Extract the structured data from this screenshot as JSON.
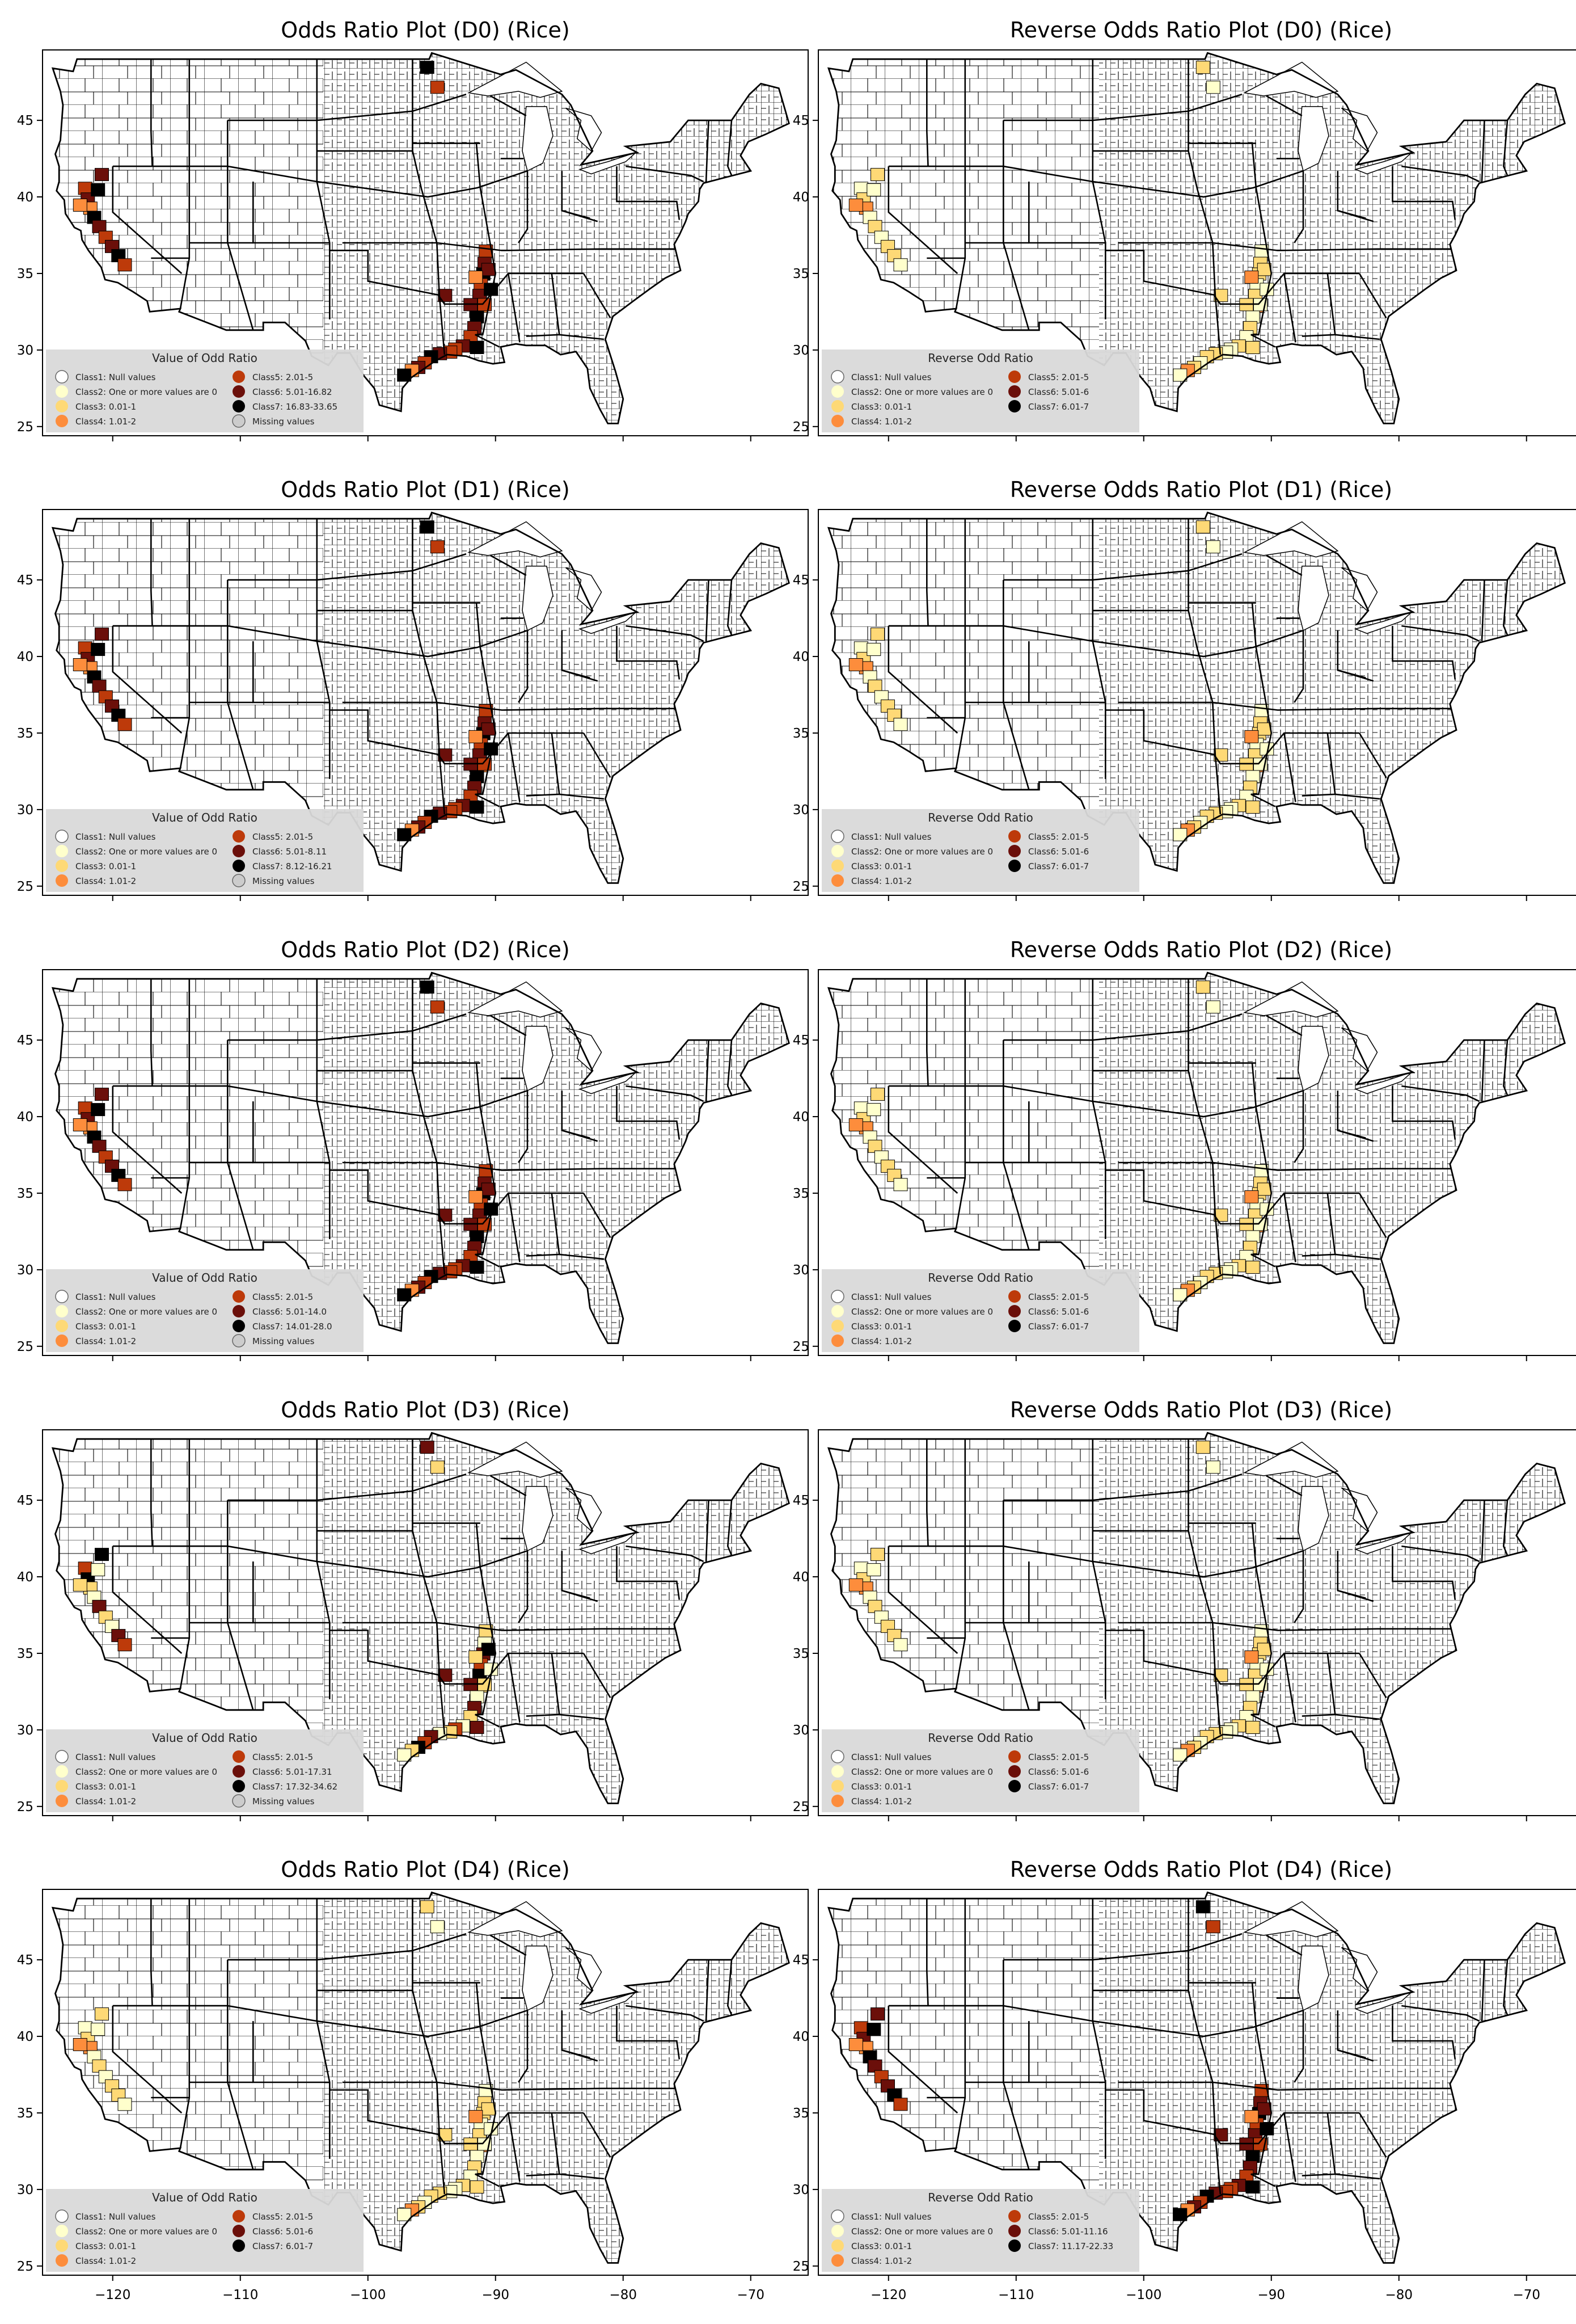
{
  "figure": {
    "crop": "Rice",
    "ticks_lon": [
      -120,
      -110,
      -100,
      -90,
      -80,
      -70
    ],
    "tick_lon_labels": [
      "−120",
      "−110",
      "−100",
      "−90",
      "−80",
      "−70"
    ],
    "ticks_lat": [
      25,
      30,
      35,
      40,
      45
    ],
    "lon_range": [
      -125.5,
      -65.5
    ],
    "lat_range": [
      24.4,
      49.6
    ]
  },
  "colors": {
    "class1": "#ffffff",
    "class2": "#ffffcc",
    "class3": "#fed976",
    "class4": "#fd8d3c",
    "class5": "#bd3a0a",
    "class6": "#6b0f0a",
    "class7": "#000000",
    "missing": "#cccccc",
    "legend_bg": "#d9d9d9"
  },
  "panels": [
    {
      "id": "or-d0",
      "title": "Odds Ratio Plot (D0) (Rice)",
      "legend_title": "Value of Odd Ratio",
      "classes": [
        "Class1: Null values",
        "Class2: One or more values are 0",
        "Class3: 0.01-1",
        "Class4: 1.01-2",
        "Class5: 2.01-5",
        "Class6: 5.01-16.82",
        "Class7: 16.83-33.65",
        "Missing values"
      ],
      "highlight": "dark"
    },
    {
      "id": "ror-d0",
      "title": "Reverse Odds Ratio Plot (D0) (Rice)",
      "legend_title": "Reverse Odd Ratio",
      "classes": [
        "Class1: Null values",
        "Class2: One or more values are 0",
        "Class3: 0.01-1",
        "Class4: 1.01-2",
        "Class5: 2.01-5",
        "Class6: 5.01-6",
        "Class7: 6.01-7"
      ],
      "highlight": "light"
    },
    {
      "id": "or-d1",
      "title": "Odds Ratio Plot (D1) (Rice)",
      "legend_title": "Value of Odd Ratio",
      "classes": [
        "Class1: Null values",
        "Class2: One or more values are 0",
        "Class3: 0.01-1",
        "Class4: 1.01-2",
        "Class5: 2.01-5",
        "Class6: 5.01-8.11",
        "Class7: 8.12-16.21",
        "Missing values"
      ],
      "highlight": "dark"
    },
    {
      "id": "ror-d1",
      "title": "Reverse Odds Ratio Plot (D1) (Rice)",
      "legend_title": "Reverse Odd Ratio",
      "classes": [
        "Class1: Null values",
        "Class2: One or more values are 0",
        "Class3: 0.01-1",
        "Class4: 1.01-2",
        "Class5: 2.01-5",
        "Class6: 5.01-6",
        "Class7: 6.01-7"
      ],
      "highlight": "light"
    },
    {
      "id": "or-d2",
      "title": "Odds Ratio Plot (D2) (Rice)",
      "legend_title": "Value of Odd Ratio",
      "classes": [
        "Class1: Null values",
        "Class2: One or more values are 0",
        "Class3: 0.01-1",
        "Class4: 1.01-2",
        "Class5: 2.01-5",
        "Class6: 5.01-14.0",
        "Class7: 14.01-28.0",
        "Missing values"
      ],
      "highlight": "dark"
    },
    {
      "id": "ror-d2",
      "title": "Reverse Odds Ratio Plot (D2) (Rice)",
      "legend_title": "Reverse Odd Ratio",
      "classes": [
        "Class1: Null values",
        "Class2: One or more values are 0",
        "Class3: 0.01-1",
        "Class4: 1.01-2",
        "Class5: 2.01-5",
        "Class6: 5.01-6",
        "Class7: 6.01-7"
      ],
      "highlight": "light"
    },
    {
      "id": "or-d3",
      "title": "Odds Ratio Plot (D3) (Rice)",
      "legend_title": "Value of Odd Ratio",
      "classes": [
        "Class1: Null values",
        "Class2: One or more values are 0",
        "Class3: 0.01-1",
        "Class4: 1.01-2",
        "Class5: 2.01-5",
        "Class6: 5.01-17.31",
        "Class7: 17.32-34.62",
        "Missing values"
      ],
      "highlight": "mixed"
    },
    {
      "id": "ror-d3",
      "title": "Reverse Odds Ratio Plot (D3) (Rice)",
      "legend_title": "Reverse Odd Ratio",
      "classes": [
        "Class1: Null values",
        "Class2: One or more values are 0",
        "Class3: 0.01-1",
        "Class4: 1.01-2",
        "Class5: 2.01-5",
        "Class6: 5.01-6",
        "Class7: 6.01-7"
      ],
      "highlight": "light"
    },
    {
      "id": "or-d4",
      "title": "Odds Ratio Plot (D4) (Rice)",
      "legend_title": "Value of Odd Ratio",
      "classes": [
        "Class1: Null values",
        "Class2: One or more values are 0",
        "Class3: 0.01-1",
        "Class4: 1.01-2",
        "Class5: 2.01-5",
        "Class6: 5.01-6",
        "Class7: 6.01-7"
      ],
      "highlight": "light"
    },
    {
      "id": "ror-d4",
      "title": "Reverse Odds Ratio Plot (D4) (Rice)",
      "legend_title": "Reverse Odd Ratio",
      "classes": [
        "Class1: Null values",
        "Class2: One or more values are 0",
        "Class3: 0.01-1",
        "Class4: 1.01-2",
        "Class5: 2.01-5",
        "Class6: 5.01-11.16",
        "Class7: 11.17-22.33"
      ],
      "highlight": "dark"
    }
  ]
}
